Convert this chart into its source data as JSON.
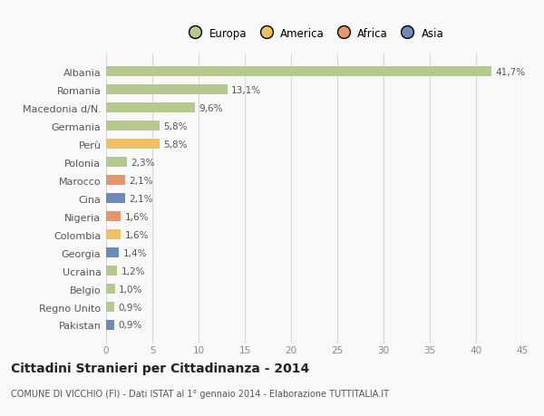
{
  "categories": [
    "Albania",
    "Romania",
    "Macedonia d/N.",
    "Germania",
    "Perù",
    "Polonia",
    "Marocco",
    "Cina",
    "Nigeria",
    "Colombia",
    "Georgia",
    "Ucraina",
    "Belgio",
    "Regno Unito",
    "Pakistan"
  ],
  "values": [
    41.7,
    13.1,
    9.6,
    5.8,
    5.8,
    2.3,
    2.1,
    2.1,
    1.6,
    1.6,
    1.4,
    1.2,
    1.0,
    0.9,
    0.9
  ],
  "labels": [
    "41,7%",
    "13,1%",
    "9,6%",
    "5,8%",
    "5,8%",
    "2,3%",
    "2,1%",
    "2,1%",
    "1,6%",
    "1,6%",
    "1,4%",
    "1,2%",
    "1,0%",
    "0,9%",
    "0,9%"
  ],
  "colors": [
    "#b5c98e",
    "#b5c98e",
    "#b5c98e",
    "#b5c98e",
    "#f0c060",
    "#b5c98e",
    "#e8956d",
    "#6b8cba",
    "#e8956d",
    "#f0c060",
    "#6b8cba",
    "#b5c98e",
    "#b5c98e",
    "#b5c98e",
    "#6b8cba"
  ],
  "legend": [
    {
      "label": "Europa",
      "color": "#b5c98e"
    },
    {
      "label": "America",
      "color": "#f0c060"
    },
    {
      "label": "Africa",
      "color": "#e8956d"
    },
    {
      "label": "Asia",
      "color": "#6b8cba"
    }
  ],
  "xlim": [
    0,
    45
  ],
  "xticks": [
    0,
    5,
    10,
    15,
    20,
    25,
    30,
    35,
    40,
    45
  ],
  "title": "Cittadini Stranieri per Cittadinanza - 2014",
  "subtitle": "COMUNE DI VICCHIO (FI) - Dati ISTAT al 1° gennaio 2014 - Elaborazione TUTTITALIA.IT",
  "background_color": "#f9f9f9",
  "grid_color": "#d8d8d8",
  "bar_height": 0.55,
  "label_fontsize": 7.5,
  "ytick_fontsize": 8,
  "xtick_fontsize": 7.5,
  "title_fontsize": 10,
  "subtitle_fontsize": 7,
  "legend_fontsize": 8.5
}
